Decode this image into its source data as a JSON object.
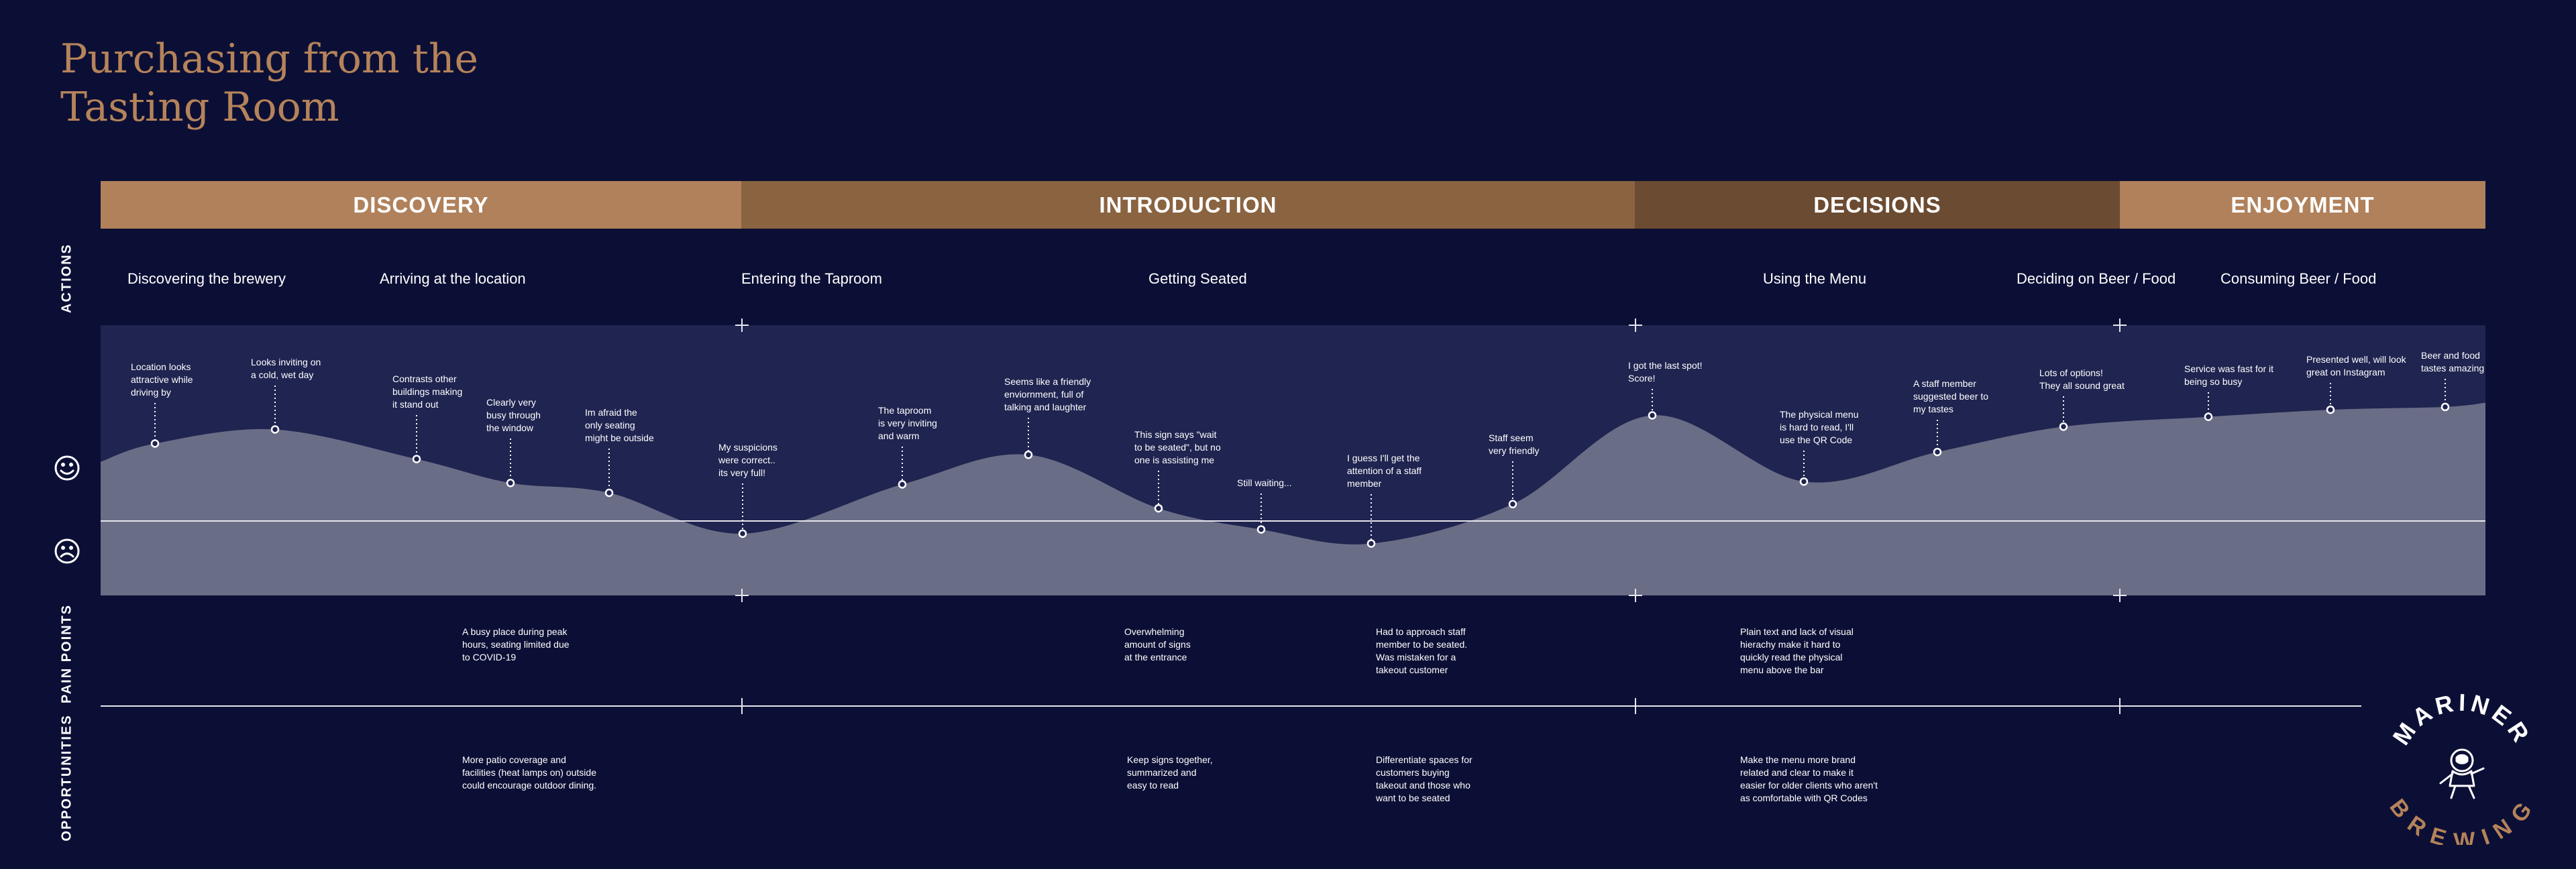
{
  "title": {
    "line1": "Purchasing from the",
    "line2": "Tasting Room"
  },
  "colors": {
    "background": "#0c0f35",
    "title": "#b5835a",
    "chart_band": "#1f2450",
    "curve_fill": "#6a6d86",
    "brand_orange": "#b5835a"
  },
  "phases": [
    {
      "label": "DISCOVERY",
      "color": "#b0815b"
    },
    {
      "label": "INTRODUCTION",
      "color": "#8a6341"
    },
    {
      "label": "DECISIONS",
      "color": "#6b4b31"
    },
    {
      "label": "ENJOYMENT",
      "color": "#b0815b"
    }
  ],
  "row_labels": {
    "actions": "ACTIONS",
    "pain_points": "PAIN POINTS",
    "opportunities": "OPPORTUNITIES"
  },
  "icons": {
    "happy": "smiley-face-icon",
    "sad": "sad-face-icon"
  },
  "actions": [
    "Discovering the brewery",
    "Arriving at the location",
    "Entering the Taproom",
    "Getting Seated",
    "Using the Menu",
    "Deciding on Beer / Food",
    "Consuming Beer / Food"
  ],
  "chart_data": {
    "type": "line",
    "y_scale": "sentiment: positive above baseline, negative below",
    "points": [
      {
        "text": "Location looks\nattractive while\ndriving by",
        "sentiment": 0.55
      },
      {
        "text": "Looks inviting on\na cold, wet day",
        "sentiment": 0.65
      },
      {
        "text": "Contrasts other\nbuildings making\nit stand out",
        "sentiment": 0.44
      },
      {
        "text": "Clearly very\nbusy through\nthe window",
        "sentiment": 0.27
      },
      {
        "text": "Im afraid the\nonly seating\nmight be outside",
        "sentiment": 0.2
      },
      {
        "text": "My suspicions\nwere correct..\nits very full!",
        "sentiment": -0.09
      },
      {
        "text": "The taproom\nis very inviting\nand warm",
        "sentiment": 0.26
      },
      {
        "text": "Seems like a friendly\nenviornment, full of\ntalking and laughter",
        "sentiment": 0.47
      },
      {
        "text": "This sign says \"wait\nto be seated\", but no\none is assisting me",
        "sentiment": 0.09
      },
      {
        "text": "Still waiting...",
        "sentiment": -0.06
      },
      {
        "text": "I guess I'll get the\nattention of a staff\nmember",
        "sentiment": -0.16
      },
      {
        "text": "Staff seem\nvery friendly",
        "sentiment": 0.12
      },
      {
        "text": "I got the last spot!\nScore!",
        "sentiment": 0.75
      },
      {
        "text": "The physical menu\nis hard to read, I'll\nuse the QR Code",
        "sentiment": 0.28
      },
      {
        "text": "A staff member\nsuggested beer to\nmy tastes",
        "sentiment": 0.49
      },
      {
        "text": "Lots of options!\nThey all sound great",
        "sentiment": 0.67
      },
      {
        "text": "Service was fast for it\nbeing so busy",
        "sentiment": 0.74
      },
      {
        "text": "Presented well, will look\ngreat on Instagram",
        "sentiment": 0.79
      },
      {
        "text": "Beer and food\ntastes amazing",
        "sentiment": 0.81
      }
    ]
  },
  "pain_points": [
    "A busy place during peak\nhours, seating limited due\nto COVID-19",
    "Overwhelming\namount of signs\nat the entrance",
    "Had to approach staff\nmember to be seated.\nWas mistaken for a\ntakeout customer",
    "Plain text and lack of visual\nhierachy make it hard to\nquickly read the physical\nmenu above the bar"
  ],
  "opportunities": [
    "More patio coverage and\nfacilities (heat lamps on) outside\ncould encourage outdoor dining.",
    "Keep signs together,\nsummarized and\neasy to read",
    "Differentiate spaces for\ncustomers buying\ntakeout and those who\nwant to be seated",
    "Make the menu more brand\nrelated and clear to make it\neasier for older clients who aren't\nas comfortable with QR Codes"
  ],
  "logo": {
    "top_text": "MARINER",
    "bottom_text": "BREWING",
    "icon": "astronaut-icon"
  }
}
